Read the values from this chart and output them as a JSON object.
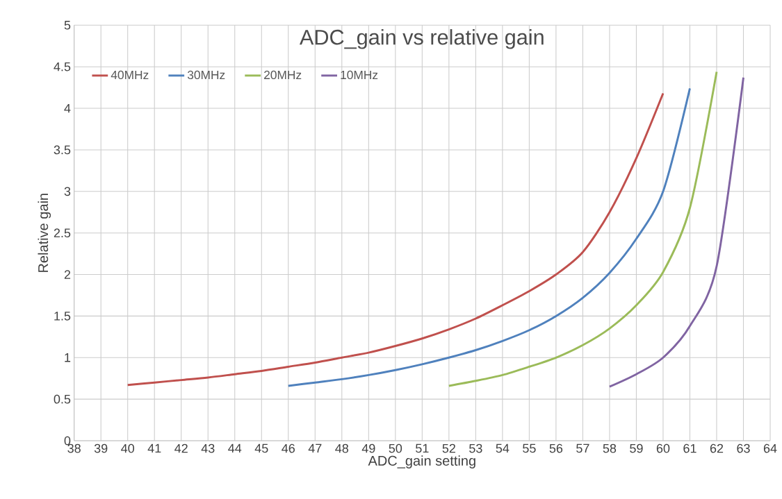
{
  "chart_data": {
    "type": "line",
    "title": "ADC_gain vs relative gain",
    "xlabel": "ADC_gain setting",
    "ylabel": "Relative gain",
    "xlim": [
      38,
      64
    ],
    "xticks": [
      38,
      39,
      40,
      41,
      42,
      43,
      44,
      45,
      46,
      47,
      48,
      49,
      50,
      51,
      52,
      53,
      54,
      55,
      56,
      57,
      58,
      59,
      60,
      61,
      62,
      63,
      64
    ],
    "ylim": [
      0,
      5
    ],
    "yticks": [
      0,
      0.5,
      1,
      1.5,
      2,
      2.5,
      3,
      3.5,
      4,
      4.5,
      5
    ],
    "grid": true,
    "legend": "top left",
    "marker": "none",
    "line_style": "solid",
    "series": [
      {
        "name": "40MHz",
        "color": "#c0504d",
        "x": [
          40,
          41,
          42,
          43,
          44,
          45,
          46,
          47,
          48,
          49,
          50,
          51,
          52,
          53,
          54,
          55,
          56,
          57,
          58,
          59,
          60
        ],
        "values": [
          0.67,
          0.7,
          0.73,
          0.76,
          0.8,
          0.84,
          0.89,
          0.94,
          1.0,
          1.06,
          1.14,
          1.23,
          1.34,
          1.47,
          1.63,
          1.8,
          2.0,
          2.27,
          2.75,
          3.4,
          4.18
        ]
      },
      {
        "name": "30MHz",
        "color": "#4f81bd",
        "x": [
          46,
          47,
          48,
          49,
          50,
          51,
          52,
          53,
          54,
          55,
          56,
          57,
          58,
          59,
          60,
          61
        ],
        "values": [
          0.66,
          0.7,
          0.74,
          0.79,
          0.85,
          0.92,
          1.0,
          1.09,
          1.2,
          1.33,
          1.5,
          1.72,
          2.02,
          2.43,
          3.0,
          4.24
        ]
      },
      {
        "name": "20MHz",
        "color": "#9bbb59",
        "x": [
          52,
          53,
          54,
          55,
          56,
          57,
          58,
          59,
          60,
          61,
          62
        ],
        "values": [
          0.66,
          0.72,
          0.79,
          0.89,
          1.0,
          1.15,
          1.35,
          1.63,
          2.03,
          2.8,
          4.44
        ]
      },
      {
        "name": "10MHz",
        "color": "#8064a2",
        "x": [
          58,
          59,
          60,
          61,
          62,
          63
        ],
        "values": [
          0.65,
          0.8,
          1.0,
          1.38,
          2.1,
          4.37
        ]
      }
    ]
  }
}
